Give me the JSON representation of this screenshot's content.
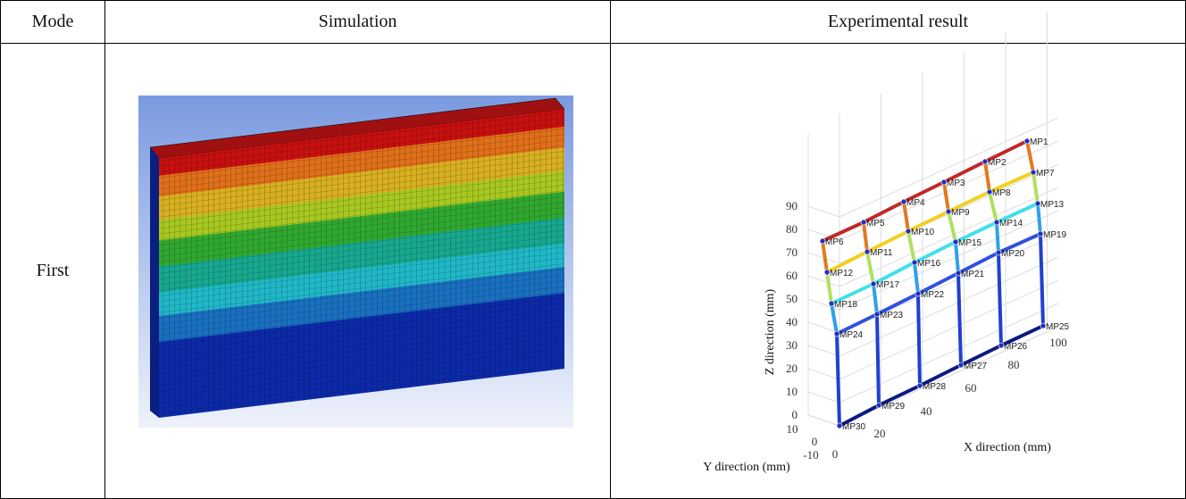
{
  "table": {
    "header": [
      "Mode",
      "Simulation",
      "Experimental result"
    ],
    "rows": [
      {
        "mode": "First"
      }
    ]
  },
  "plot": {
    "z_label": "Z direction (mm)",
    "x_label": "X direction (mm)",
    "y_label": "Y direction (mm)",
    "z_ticks": [
      "0",
      "10",
      "20",
      "30",
      "40",
      "50",
      "60",
      "70",
      "80",
      "90"
    ],
    "x_ticks": [
      "0",
      "20",
      "40",
      "60",
      "80",
      "100"
    ],
    "y_ticks": [
      "-10",
      "0",
      "10"
    ],
    "points": [
      "MP1",
      "MP2",
      "MP3",
      "MP4",
      "MP5",
      "MP6",
      "MP7",
      "MP8",
      "MP9",
      "MP10",
      "MP11",
      "MP12",
      "MP13",
      "MP14",
      "MP15",
      "MP16",
      "MP17",
      "MP18",
      "MP19",
      "MP20",
      "MP21",
      "MP22",
      "MP23",
      "MP24",
      "MP25",
      "MP26",
      "MP27",
      "MP28",
      "MP29",
      "MP30"
    ]
  }
}
